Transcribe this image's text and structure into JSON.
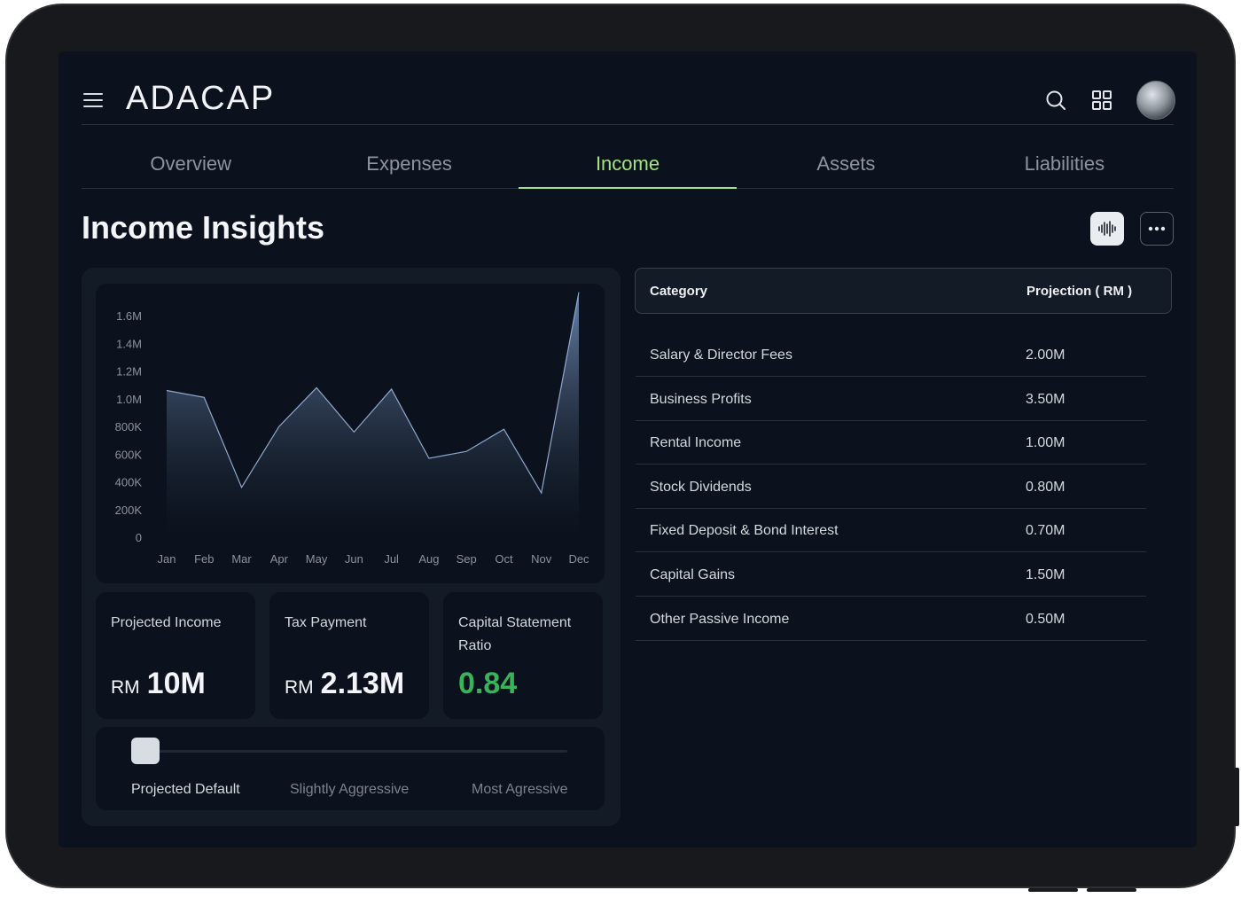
{
  "app": {
    "logo": "ADACAP"
  },
  "header": {
    "icons": [
      "menu-icon",
      "search-icon",
      "grid-icon",
      "avatar"
    ]
  },
  "tabs": [
    {
      "label": "Overview",
      "active": false
    },
    {
      "label": "Expenses",
      "active": false
    },
    {
      "label": "Income",
      "active": true
    },
    {
      "label": "Assets",
      "active": false
    },
    {
      "label": "Liabilities",
      "active": false
    }
  ],
  "page": {
    "title": "Income Insights",
    "actions": [
      "waveform-icon",
      "more-icon"
    ]
  },
  "chart_data": {
    "type": "area",
    "categories": [
      "Jan",
      "Feb",
      "Mar",
      "Apr",
      "May",
      "Jun",
      "Jul",
      "Aug",
      "Sep",
      "Oct",
      "Nov",
      "Dec"
    ],
    "values": [
      1060000,
      1010000,
      360000,
      800000,
      1080000,
      760000,
      1070000,
      570000,
      620000,
      780000,
      320000,
      1770000
    ],
    "y_ticks": [
      "1.6M",
      "1.4M",
      "1.2M",
      "1.0M",
      "800K",
      "600K",
      "400K",
      "200K",
      "0"
    ],
    "ylim": [
      0,
      1800000
    ],
    "colors": {
      "fill_top": "#6f8ab3",
      "fill_bottom": "#0b121d",
      "stroke": "#8fa8cf"
    }
  },
  "stats": [
    {
      "label": "Projected Income",
      "currency": "RM",
      "value": "10M",
      "color": "#f3f5f8"
    },
    {
      "label": "Tax Payment",
      "currency": "RM",
      "value": "2.13M",
      "color": "#f3f5f8"
    },
    {
      "label": "Capital Statement Ratio",
      "currency": "",
      "value": "0.84",
      "color": "#39b35a"
    }
  ],
  "slider": {
    "options": [
      "Projected Default",
      "Slightly Aggressive",
      "Most Agressive"
    ],
    "selected": "Projected Default",
    "position": 0
  },
  "table": {
    "headers": [
      "Category",
      "Projection ( RM )"
    ],
    "rows": [
      [
        "Salary & Director Fees",
        "2.00M"
      ],
      [
        "Business Profits",
        "3.50M"
      ],
      [
        "Rental Income",
        "1.00M"
      ],
      [
        "Stock Dividends",
        "0.80M"
      ],
      [
        "Fixed Deposit & Bond Interest",
        "0.70M"
      ],
      [
        "Capital Gains",
        "1.50M"
      ],
      [
        "Other Passive Income",
        "0.50M"
      ]
    ]
  },
  "colors": {
    "accent": "#a4e37e",
    "background": "#0b121d",
    "panel": "#131b27"
  }
}
